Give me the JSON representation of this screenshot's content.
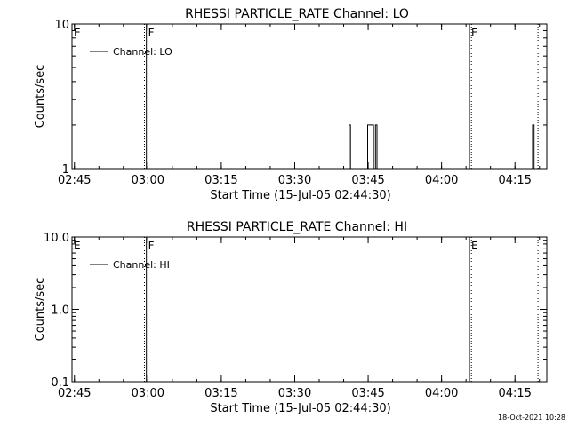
{
  "timestamp": "18-Oct-2021 10:28",
  "chart_data": [
    {
      "type": "line",
      "title": "RHESSI PARTICLE_RATE Channel: LO",
      "xlabel": "Start Time (15-Jul-05 02:44:30)",
      "ylabel": "Counts/sec",
      "x_unit": "minutes since 02:44:30",
      "xlim": [
        0,
        97
      ],
      "ylim": [
        1,
        10
      ],
      "yscale": "log",
      "x_ticks": [
        {
          "t": 0.5,
          "label": "02:45"
        },
        {
          "t": 15.5,
          "label": "03:00"
        },
        {
          "t": 30.5,
          "label": "03:15"
        },
        {
          "t": 45.5,
          "label": "03:30"
        },
        {
          "t": 60.5,
          "label": "03:45"
        },
        {
          "t": 75.5,
          "label": "04:00"
        },
        {
          "t": 90.5,
          "label": "04:15"
        }
      ],
      "y_ticks": [
        {
          "v": 1,
          "label": "1"
        },
        {
          "v": 10,
          "label": "10"
        }
      ],
      "markers": [
        {
          "t": 0,
          "label": "E",
          "style": "solid"
        },
        {
          "t": 14.8,
          "label": "",
          "style": "dotted"
        },
        {
          "t": 15.2,
          "label": "F",
          "style": "solid"
        },
        {
          "t": 81.2,
          "label": "E",
          "style": "solid"
        },
        {
          "t": 81.6,
          "label": "",
          "style": "dotted"
        },
        {
          "t": 95.2,
          "label": "",
          "style": "dotted"
        }
      ],
      "legend": {
        "label": "Channel: LO",
        "position": "top-left"
      },
      "grid": false,
      "series": [
        {
          "name": "Channel: LO",
          "points": [
            [
              0,
              1
            ],
            [
              56.6,
              1
            ],
            [
              56.6,
              2
            ],
            [
              56.9,
              2
            ],
            [
              56.9,
              1
            ],
            [
              60.4,
              1
            ],
            [
              60.4,
              2
            ],
            [
              61.6,
              2
            ],
            [
              61.6,
              1
            ],
            [
              62.0,
              1
            ],
            [
              62.0,
              2
            ],
            [
              62.3,
              2
            ],
            [
              62.3,
              1
            ],
            [
              94.1,
              1
            ],
            [
              94.1,
              2
            ],
            [
              94.4,
              2
            ],
            [
              94.4,
              1
            ],
            [
              97,
              1
            ]
          ]
        }
      ]
    },
    {
      "type": "line",
      "title": "RHESSI PARTICLE_RATE Channel: HI",
      "xlabel": "Start Time (15-Jul-05 02:44:30)",
      "ylabel": "Counts/sec",
      "x_unit": "minutes since 02:44:30",
      "xlim": [
        0,
        97
      ],
      "ylim": [
        0.1,
        10
      ],
      "yscale": "log",
      "x_ticks": [
        {
          "t": 0.5,
          "label": "02:45"
        },
        {
          "t": 15.5,
          "label": "03:00"
        },
        {
          "t": 30.5,
          "label": "03:15"
        },
        {
          "t": 45.5,
          "label": "03:30"
        },
        {
          "t": 60.5,
          "label": "03:45"
        },
        {
          "t": 75.5,
          "label": "04:00"
        },
        {
          "t": 90.5,
          "label": "04:15"
        }
      ],
      "y_ticks": [
        {
          "v": 0.1,
          "label": "0.1"
        },
        {
          "v": 1,
          "label": "1.0"
        },
        {
          "v": 10,
          "label": "10.0"
        }
      ],
      "markers": [
        {
          "t": 0,
          "label": "E",
          "style": "solid"
        },
        {
          "t": 14.8,
          "label": "",
          "style": "dotted"
        },
        {
          "t": 15.2,
          "label": "F",
          "style": "solid"
        },
        {
          "t": 81.2,
          "label": "E",
          "style": "solid"
        },
        {
          "t": 81.6,
          "label": "",
          "style": "dotted"
        },
        {
          "t": 95.2,
          "label": "",
          "style": "dotted"
        }
      ],
      "legend": {
        "label": "Channel: HI",
        "position": "top-left"
      },
      "grid": false,
      "series": [
        {
          "name": "Channel: HI",
          "points": []
        }
      ]
    }
  ]
}
